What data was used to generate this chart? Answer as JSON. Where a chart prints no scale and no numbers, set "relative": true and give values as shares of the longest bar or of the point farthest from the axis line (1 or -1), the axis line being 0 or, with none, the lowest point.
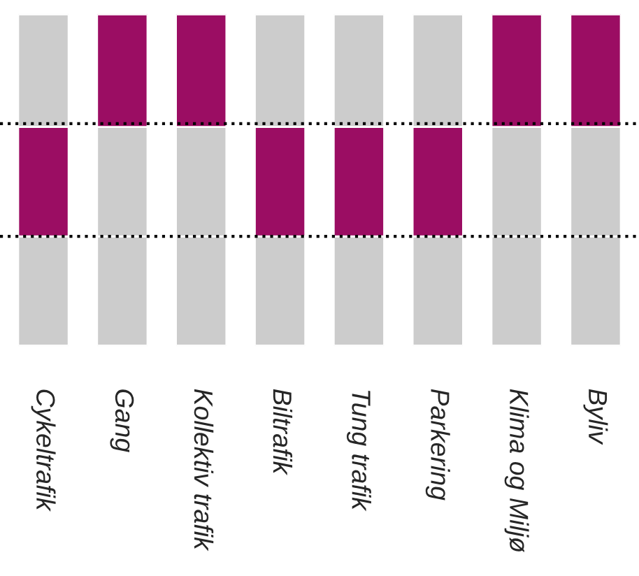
{
  "chart_data": {
    "type": "bar",
    "relative": true,
    "stacked": true,
    "categories": [
      "Cykeltrafik",
      "Gang",
      "Kollektiv trafik",
      "Biltrafik",
      "Tung trafik",
      "Parkering",
      "Klima og Miljø",
      "Byliv"
    ],
    "series": [
      {
        "colors": [
          "#cccccc",
          "#cccccc",
          "#cccccc",
          "#cccccc",
          "#cccccc",
          "#cccccc",
          "#cccccc",
          "#cccccc"
        ],
        "values": [
          0.33,
          0.33,
          0.33,
          0.33,
          0.33,
          0.33,
          0.33,
          0.33
        ]
      },
      {
        "colors": [
          "#9b0d63",
          "#cccccc",
          "#cccccc",
          "#9b0d63",
          "#9b0d63",
          "#9b0d63",
          "#cccccc",
          "#cccccc"
        ],
        "values": [
          0.33,
          0.33,
          0.33,
          0.33,
          0.33,
          0.33,
          0.33,
          0.33
        ]
      },
      {
        "colors": [
          "#cccccc",
          "#9b0d63",
          "#9b0d63",
          "#cccccc",
          "#cccccc",
          "#cccccc",
          "#9b0d63",
          "#9b0d63"
        ],
        "values": [
          0.34,
          0.34,
          0.34,
          0.34,
          0.34,
          0.34,
          0.34,
          0.34
        ]
      }
    ],
    "ref_lines": [
      {
        "axis": "y",
        "value": 0.33,
        "color": "#000000",
        "line_style": "dotted"
      },
      {
        "axis": "y",
        "value": 0.67,
        "color": "#000000",
        "line_style": "dotted"
      }
    ],
    "grid": false,
    "legend": false
  }
}
